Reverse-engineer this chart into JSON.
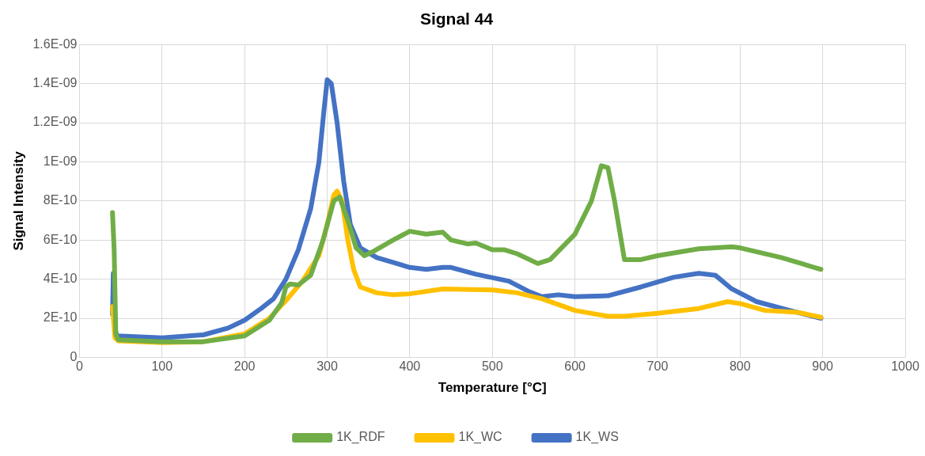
{
  "chart_data": {
    "type": "line",
    "title": "Signal 44",
    "xlabel": "Temperature [°C]",
    "ylabel": "Signal Intensity",
    "xlim": [
      0,
      1000
    ],
    "xticks": [
      0,
      100,
      200,
      300,
      400,
      500,
      600,
      700,
      800,
      900,
      1000
    ],
    "ylim": [
      0,
      1.6e-09
    ],
    "yticks": [
      0,
      {
        "value": 2e-10,
        "label": "2E-10"
      },
      {
        "value": 4e-10,
        "label": "4E-10"
      },
      {
        "value": 6e-10,
        "label": "6E-10"
      },
      {
        "value": 8e-10,
        "label": "8E-10"
      },
      {
        "value": 1e-09,
        "label": "1E-09"
      },
      {
        "value": 1.2e-09,
        "label": "1.2E-09"
      },
      {
        "value": 1.4e-09,
        "label": "1.4E-09"
      },
      {
        "value": 1.6e-09,
        "label": "1.6E-09"
      }
    ],
    "grid": true,
    "legend": "bottom",
    "marker": "none",
    "line_style": "solid",
    "series": [
      {
        "name": "1K_RDF",
        "color": "#70ad47",
        "x": [
          40,
          42,
          44,
          47,
          100,
          150,
          200,
          230,
          245,
          250,
          255,
          265,
          280,
          295,
          308,
          315,
          325,
          335,
          345,
          355,
          380,
          400,
          420,
          440,
          450,
          470,
          480,
          500,
          515,
          530,
          555,
          570,
          600,
          620,
          632,
          640,
          648,
          660,
          680,
          700,
          750,
          790,
          800,
          850,
          890,
          898
        ],
        "values": [
          7.4e-10,
          5.5e-10,
          1.2e-10,
          9e-11,
          8e-11,
          8e-11,
          1.1e-10,
          1.9e-10,
          2.8e-10,
          3.6e-10,
          3.75e-10,
          3.7e-10,
          4.2e-10,
          6e-10,
          8e-10,
          8.2e-10,
          7e-10,
          5.6e-10,
          5.2e-10,
          5.4e-10,
          6e-10,
          6.45e-10,
          6.3e-10,
          6.4e-10,
          6e-10,
          5.8e-10,
          5.85e-10,
          5.5e-10,
          5.5e-10,
          5.3e-10,
          4.8e-10,
          5e-10,
          6.3e-10,
          8e-10,
          9.8e-10,
          9.7e-10,
          8e-10,
          5e-10,
          5e-10,
          5.2e-10,
          5.55e-10,
          5.65e-10,
          5.6e-10,
          5.1e-10,
          4.6e-10,
          4.5e-10
        ]
      },
      {
        "name": "1K_WC",
        "color": "#ffc000",
        "x": [
          40,
          43,
          47,
          100,
          150,
          200,
          230,
          250,
          270,
          290,
          300,
          308,
          312,
          318,
          325,
          332,
          340,
          360,
          380,
          400,
          440,
          500,
          530,
          560,
          600,
          640,
          660,
          700,
          750,
          785,
          800,
          830,
          870,
          898
        ],
        "values": [
          2.6e-10,
          1e-10,
          8.5e-11,
          7.5e-11,
          8e-11,
          1.2e-10,
          2e-10,
          2.9e-10,
          3.9e-10,
          5.2e-10,
          6.8e-10,
          8.3e-10,
          8.5e-10,
          8e-10,
          6e-10,
          4.5e-10,
          3.6e-10,
          3.3e-10,
          3.2e-10,
          3.25e-10,
          3.5e-10,
          3.45e-10,
          3.3e-10,
          3e-10,
          2.4e-10,
          2.1e-10,
          2.1e-10,
          2.25e-10,
          2.5e-10,
          2.85e-10,
          2.75e-10,
          2.4e-10,
          2.3e-10,
          2.05e-10
        ]
      },
      {
        "name": "1K_WS",
        "color": "#4472c4",
        "x": [
          40,
          41,
          43,
          45,
          100,
          150,
          180,
          200,
          220,
          235,
          250,
          265,
          280,
          290,
          296,
          300,
          305,
          312,
          320,
          328,
          340,
          360,
          400,
          420,
          440,
          450,
          480,
          520,
          545,
          560,
          580,
          600,
          640,
          680,
          720,
          750,
          770,
          790,
          820,
          860,
          898
        ],
        "values": [
          2.2e-10,
          4.3e-10,
          1.5e-10,
          1.1e-10,
          1e-10,
          1.15e-10,
          1.5e-10,
          1.9e-10,
          2.5e-10,
          3e-10,
          4e-10,
          5.5e-10,
          7.6e-10,
          1e-09,
          1.26e-09,
          1.42e-09,
          1.4e-09,
          1.2e-09,
          9e-10,
          6.8e-10,
          5.6e-10,
          5.1e-10,
          4.6e-10,
          4.5e-10,
          4.6e-10,
          4.6e-10,
          4.25e-10,
          3.9e-10,
          3.35e-10,
          3.1e-10,
          3.2e-10,
          3.1e-10,
          3.15e-10,
          3.6e-10,
          4.1e-10,
          4.3e-10,
          4.2e-10,
          3.5e-10,
          2.85e-10,
          2.4e-10,
          2e-10
        ]
      }
    ]
  }
}
